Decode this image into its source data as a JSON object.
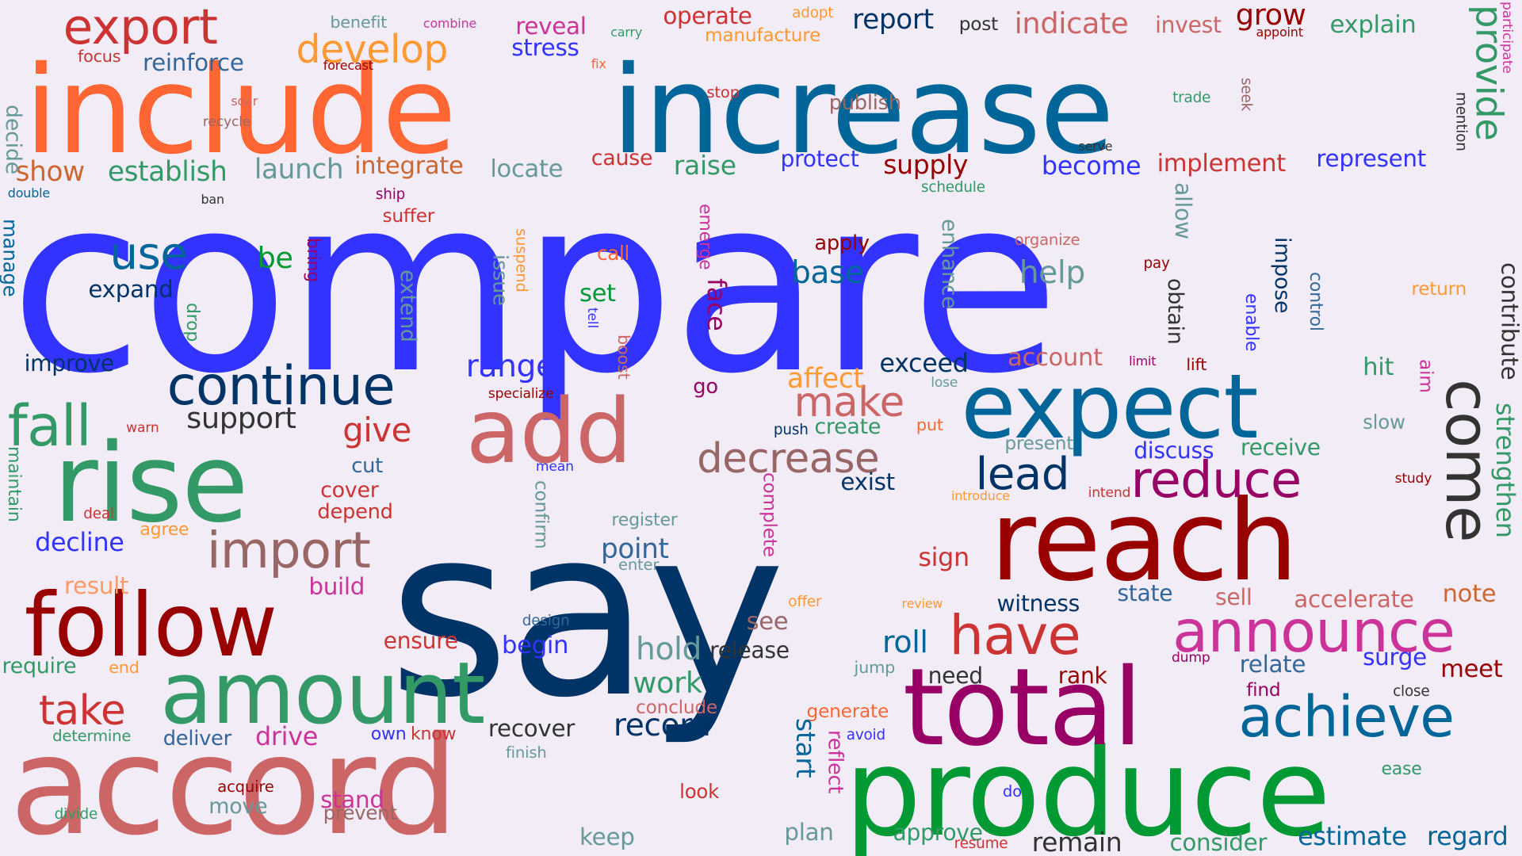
{
  "colors": {
    "background": "#f2ecf7",
    "palette": [
      "#3333ff",
      "#003366",
      "#ff6633",
      "#006699",
      "#cc6666",
      "#339966",
      "#990000",
      "#009933",
      "#990066",
      "#cc3399",
      "#666666",
      "#336699",
      "#cc3333",
      "#ff9966",
      "#669999",
      "#ff9933",
      "#333333"
    ]
  },
  "words": [
    {
      "text": "compare",
      "color": "#3333ff"
    },
    {
      "text": "say",
      "color": "#003366"
    },
    {
      "text": "include",
      "color": "#ff6633"
    },
    {
      "text": "increase",
      "color": "#006699"
    },
    {
      "text": "accord",
      "color": "#cc6666"
    },
    {
      "text": "produce",
      "color": "#009933"
    },
    {
      "text": "reach",
      "color": "#990000"
    },
    {
      "text": "expect",
      "color": "#006699"
    },
    {
      "text": "total",
      "color": "#990066"
    },
    {
      "text": "rise",
      "color": "#339966"
    },
    {
      "text": "follow",
      "color": "#990000"
    },
    {
      "text": "amount",
      "color": "#339966"
    },
    {
      "text": "add",
      "color": "#cc6666"
    },
    {
      "text": "announce",
      "color": "#cc3399"
    },
    {
      "text": "achieve",
      "color": "#006699"
    },
    {
      "text": "continue",
      "color": "#003366"
    },
    {
      "text": "have",
      "color": "#cc3333"
    },
    {
      "text": "reduce",
      "color": "#990066"
    },
    {
      "text": "come",
      "color": "#333333"
    },
    {
      "text": "import",
      "color": "#996666"
    },
    {
      "text": "decrease",
      "color": "#996666"
    },
    {
      "text": "export",
      "color": "#cc3333"
    },
    {
      "text": "develop",
      "color": "#ff9933"
    },
    {
      "text": "fall",
      "color": "#339966"
    },
    {
      "text": "take",
      "color": "#cc3333"
    },
    {
      "text": "lead",
      "color": "#003366"
    },
    {
      "text": "make",
      "color": "#cc6666"
    },
    {
      "text": "use",
      "color": "#006699"
    },
    {
      "text": "range",
      "color": "#3333ff"
    },
    {
      "text": "give",
      "color": "#cc3333"
    },
    {
      "text": "support",
      "color": "#333333"
    },
    {
      "text": "grow",
      "color": "#990000"
    },
    {
      "text": "record",
      "color": "#003366"
    },
    {
      "text": "provide",
      "color": "#339966"
    },
    {
      "text": "indicate",
      "color": "#cc6666"
    },
    {
      "text": "report",
      "color": "#003366"
    },
    {
      "text": "operate",
      "color": "#cc3333"
    },
    {
      "text": "strengthen",
      "color": "#339966"
    },
    {
      "text": "contribute",
      "color": "#333333"
    },
    {
      "text": "work",
      "color": "#339966"
    },
    {
      "text": "hold",
      "color": "#669999"
    },
    {
      "text": "remain",
      "color": "#333333"
    },
    {
      "text": "approve",
      "color": "#339966"
    },
    {
      "text": "stand",
      "color": "#cc3399"
    },
    {
      "text": "move",
      "color": "#669999"
    },
    {
      "text": "drive",
      "color": "#cc3399"
    },
    {
      "text": "be",
      "color": "#009933"
    },
    {
      "text": "expand",
      "color": "#003366"
    },
    {
      "text": "improve",
      "color": "#003366"
    },
    {
      "text": "establish",
      "color": "#339966"
    },
    {
      "text": "show",
      "color": "#cc6633"
    },
    {
      "text": "launch",
      "color": "#669999"
    },
    {
      "text": "integrate",
      "color": "#cc6633"
    },
    {
      "text": "locate",
      "color": "#669999"
    },
    {
      "text": "cause",
      "color": "#cc3333"
    },
    {
      "text": "raise",
      "color": "#339966"
    },
    {
      "text": "protect",
      "color": "#3333ff"
    },
    {
      "text": "supply",
      "color": "#990000"
    },
    {
      "text": "become",
      "color": "#3333ff"
    },
    {
      "text": "implement",
      "color": "#cc3333"
    },
    {
      "text": "represent",
      "color": "#3333ff"
    },
    {
      "text": "explain",
      "color": "#339966"
    },
    {
      "text": "invest",
      "color": "#cc6666"
    },
    {
      "text": "reinforce",
      "color": "#336699"
    },
    {
      "text": "focus",
      "color": "#cc3333"
    },
    {
      "text": "benefit",
      "color": "#669999"
    },
    {
      "text": "combine",
      "color": "#cc3399"
    },
    {
      "text": "reveal",
      "color": "#cc3399"
    },
    {
      "text": "stress",
      "color": "#3333ff"
    },
    {
      "text": "carry",
      "color": "#339966"
    },
    {
      "text": "forecast",
      "color": "#990000"
    },
    {
      "text": "fix",
      "color": "#ff6633"
    },
    {
      "text": "adopt",
      "color": "#ff9933"
    },
    {
      "text": "manufacture",
      "color": "#ff9933"
    },
    {
      "text": "post",
      "color": "#333333"
    },
    {
      "text": "appoint",
      "color": "#990000"
    },
    {
      "text": "decide",
      "color": "#669999"
    },
    {
      "text": "soar",
      "color": "#cc6666"
    },
    {
      "text": "recycle",
      "color": "#996666"
    },
    {
      "text": "stop",
      "color": "#cc3333"
    },
    {
      "text": "publish",
      "color": "#996666"
    },
    {
      "text": "trade",
      "color": "#339966"
    },
    {
      "text": "seek",
      "color": "#996666"
    },
    {
      "text": "participate",
      "color": "#cc3399"
    },
    {
      "text": "mention",
      "color": "#333333"
    },
    {
      "text": "serve",
      "color": "#333333"
    },
    {
      "text": "double",
      "color": "#006699"
    },
    {
      "text": "ban",
      "color": "#333333"
    },
    {
      "text": "ship",
      "color": "#990066"
    },
    {
      "text": "suffer",
      "color": "#cc3333"
    },
    {
      "text": "schedule",
      "color": "#339966"
    },
    {
      "text": "manage",
      "color": "#006699"
    },
    {
      "text": "bring",
      "color": "#990066"
    },
    {
      "text": "drop",
      "color": "#339966"
    },
    {
      "text": "issue",
      "color": "#669999"
    },
    {
      "text": "suspend",
      "color": "#ff9933"
    },
    {
      "text": "extend",
      "color": "#669999"
    },
    {
      "text": "call",
      "color": "#ff6633"
    },
    {
      "text": "set",
      "color": "#009933"
    },
    {
      "text": "tell",
      "color": "#3333ff"
    },
    {
      "text": "emerge",
      "color": "#cc3399"
    },
    {
      "text": "face",
      "color": "#990066"
    },
    {
      "text": "apply",
      "color": "#990000"
    },
    {
      "text": "base",
      "color": "#006699"
    },
    {
      "text": "enhance",
      "color": "#669999"
    },
    {
      "text": "help",
      "color": "#669999"
    },
    {
      "text": "organize",
      "color": "#cc6666"
    },
    {
      "text": "allow",
      "color": "#669999"
    },
    {
      "text": "pay",
      "color": "#990000"
    },
    {
      "text": "obtain",
      "color": "#333333"
    },
    {
      "text": "impose",
      "color": "#003366"
    },
    {
      "text": "enable",
      "color": "#3333ff"
    },
    {
      "text": "control",
      "color": "#336699"
    },
    {
      "text": "return",
      "color": "#ff9933"
    },
    {
      "text": "boost",
      "color": "#cc6666"
    },
    {
      "text": "go",
      "color": "#990066"
    },
    {
      "text": "specialize",
      "color": "#990000"
    },
    {
      "text": "affect",
      "color": "#ff9933"
    },
    {
      "text": "exceed",
      "color": "#003366"
    },
    {
      "text": "account",
      "color": "#cc6666"
    },
    {
      "text": "limit",
      "color": "#990066"
    },
    {
      "text": "lift",
      "color": "#990000"
    },
    {
      "text": "hit",
      "color": "#339966"
    },
    {
      "text": "aim",
      "color": "#cc3399"
    },
    {
      "text": "lose",
      "color": "#669999"
    },
    {
      "text": "put",
      "color": "#ff6633"
    },
    {
      "text": "slow",
      "color": "#669999"
    },
    {
      "text": "push",
      "color": "#003366"
    },
    {
      "text": "create",
      "color": "#339966"
    },
    {
      "text": "present",
      "color": "#669999"
    },
    {
      "text": "discuss",
      "color": "#3333ff"
    },
    {
      "text": "receive",
      "color": "#339966"
    },
    {
      "text": "warn",
      "color": "#cc3333"
    },
    {
      "text": "maintain",
      "color": "#339966"
    },
    {
      "text": "cut",
      "color": "#336699"
    },
    {
      "text": "cover",
      "color": "#cc3333"
    },
    {
      "text": "depend",
      "color": "#cc3333"
    },
    {
      "text": "deal",
      "color": "#cc3333"
    },
    {
      "text": "agree",
      "color": "#ff9933"
    },
    {
      "text": "decline",
      "color": "#3333ff"
    },
    {
      "text": "mean",
      "color": "#3333ff"
    },
    {
      "text": "confirm",
      "color": "#669999"
    },
    {
      "text": "register",
      "color": "#669999"
    },
    {
      "text": "point",
      "color": "#336699"
    },
    {
      "text": "enter",
      "color": "#669999"
    },
    {
      "text": "complete",
      "color": "#cc3399"
    },
    {
      "text": "exist",
      "color": "#003366"
    },
    {
      "text": "intend",
      "color": "#cc3333"
    },
    {
      "text": "introduce",
      "color": "#ff9933"
    },
    {
      "text": "study",
      "color": "#990000"
    },
    {
      "text": "sign",
      "color": "#cc3333"
    },
    {
      "text": "result",
      "color": "#ff9966"
    },
    {
      "text": "build",
      "color": "#cc3399"
    },
    {
      "text": "see",
      "color": "#996666"
    },
    {
      "text": "offer",
      "color": "#ff9933"
    },
    {
      "text": "witness",
      "color": "#003366"
    },
    {
      "text": "state",
      "color": "#336699"
    },
    {
      "text": "sell",
      "color": "#cc6666"
    },
    {
      "text": "accelerate",
      "color": "#cc6666"
    },
    {
      "text": "note",
      "color": "#cc6633"
    },
    {
      "text": "design",
      "color": "#336699"
    },
    {
      "text": "ensure",
      "color": "#cc3333"
    },
    {
      "text": "begin",
      "color": "#3333ff"
    },
    {
      "text": "release",
      "color": "#333333"
    },
    {
      "text": "review",
      "color": "#ff9933"
    },
    {
      "text": "roll",
      "color": "#006699"
    },
    {
      "text": "dump",
      "color": "#990066"
    },
    {
      "text": "surge",
      "color": "#3333ff"
    },
    {
      "text": "require",
      "color": "#339966"
    },
    {
      "text": "end",
      "color": "#ff9933"
    },
    {
      "text": "jump",
      "color": "#669999"
    },
    {
      "text": "need",
      "color": "#333333"
    },
    {
      "text": "rank",
      "color": "#990000"
    },
    {
      "text": "relate",
      "color": "#336699"
    },
    {
      "text": "meet",
      "color": "#990000"
    },
    {
      "text": "conclude",
      "color": "#cc6666"
    },
    {
      "text": "generate",
      "color": "#ff6633"
    },
    {
      "text": "find",
      "color": "#990066"
    },
    {
      "text": "close",
      "color": "#333333"
    },
    {
      "text": "determine",
      "color": "#339966"
    },
    {
      "text": "deliver",
      "color": "#336699"
    },
    {
      "text": "own",
      "color": "#3333ff"
    },
    {
      "text": "know",
      "color": "#cc3333"
    },
    {
      "text": "recover",
      "color": "#333333"
    },
    {
      "text": "avoid",
      "color": "#3333ff"
    },
    {
      "text": "finish",
      "color": "#669999"
    },
    {
      "text": "start",
      "color": "#006699"
    },
    {
      "text": "reflect",
      "color": "#cc3399"
    },
    {
      "text": "acquire",
      "color": "#990000"
    },
    {
      "text": "look",
      "color": "#cc3333"
    },
    {
      "text": "prevent",
      "color": "#996666"
    },
    {
      "text": "divide",
      "color": "#339966"
    },
    {
      "text": "do",
      "color": "#3333ff"
    },
    {
      "text": "ease",
      "color": "#339966"
    },
    {
      "text": "plan",
      "color": "#669999"
    },
    {
      "text": "keep",
      "color": "#669999"
    },
    {
      "text": "resume",
      "color": "#cc3333"
    },
    {
      "text": "consider",
      "color": "#339966"
    },
    {
      "text": "estimate",
      "color": "#006699"
    },
    {
      "text": "regard",
      "color": "#006699"
    }
  ]
}
